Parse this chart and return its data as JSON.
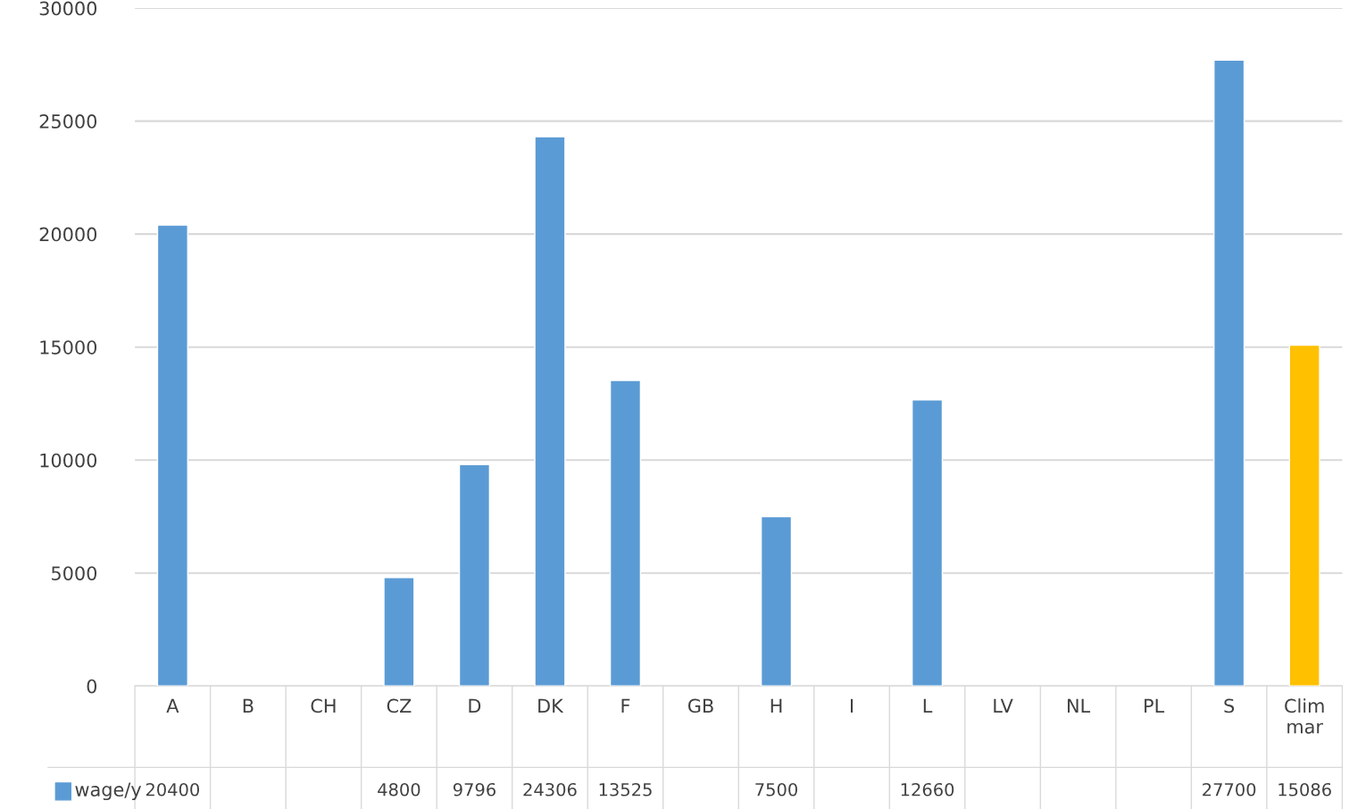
{
  "chart_data": {
    "type": "bar",
    "categories": [
      "A",
      "B",
      "CH",
      "CZ",
      "D",
      "DK",
      "F",
      "GB",
      "H",
      "I",
      "L",
      "LV",
      "NL",
      "PL",
      "S",
      "Clim mar"
    ],
    "series": [
      {
        "name": "wage/y",
        "color": "#5b9bd5",
        "colors": [
          "#5b9bd5",
          "#5b9bd5",
          "#5b9bd5",
          "#5b9bd5",
          "#5b9bd5",
          "#5b9bd5",
          "#5b9bd5",
          "#5b9bd5",
          "#5b9bd5",
          "#5b9bd5",
          "#5b9bd5",
          "#5b9bd5",
          "#5b9bd5",
          "#5b9bd5",
          "#5b9bd5",
          "#ffc000"
        ],
        "values": [
          20400,
          null,
          null,
          4800,
          9796,
          24306,
          13525,
          null,
          7500,
          null,
          12660,
          null,
          null,
          null,
          27700,
          15086
        ]
      }
    ],
    "ylim": [
      0,
      30000
    ],
    "yticks": [
      0,
      5000,
      10000,
      15000,
      20000,
      25000,
      30000
    ],
    "grid": "y",
    "data_labels": true,
    "legend": "bottom"
  }
}
